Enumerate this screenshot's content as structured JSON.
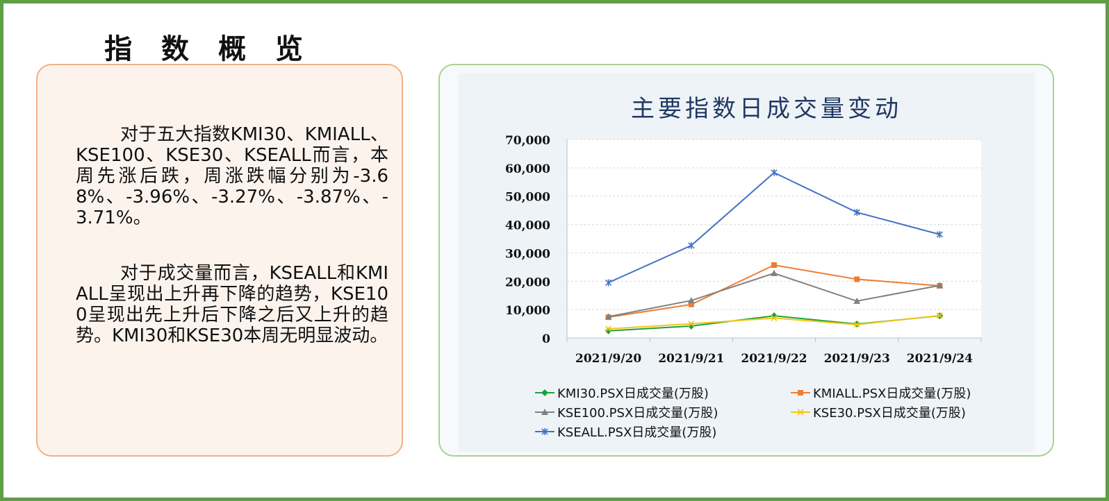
{
  "page": {
    "heading": "指 数 概 览",
    "paragraphs": [
      "对于五大指数KMI30、KMIALL、KSE100、KSE30、KSEALL而言，本周先涨后跌，周涨跌幅分别为-3.68%、-3.96%、-3.27%、-3.87%、-3.71%。",
      "对于成交量而言，KSEALL和KMIALL呈现出上升再下降的趋势，KSE100呈现出先上升后下降之后又上升的趋势。KMI30和KSE30本周无明显波动。"
    ]
  },
  "colors": {
    "frame": "#5f9e45",
    "text_panel_border": "#f2b183",
    "text_panel_bg": "#fdf3ed",
    "chart_panel_border": "#a9d18e",
    "chart_title": "#1f3864"
  },
  "chart_data": {
    "type": "line",
    "title": "主要指数日成交量变动",
    "categories": [
      "2021/9/20",
      "2021/9/21",
      "2021/9/22",
      "2021/9/23",
      "2021/9/24"
    ],
    "ylim": [
      0,
      70000
    ],
    "yticks": [
      0,
      10000,
      20000,
      30000,
      40000,
      50000,
      60000,
      70000
    ],
    "ytick_labels": [
      "0",
      "10,000",
      "20,000",
      "30,000",
      "40,000",
      "50,000",
      "60,000",
      "70,000"
    ],
    "grid": true,
    "legend_position": "bottom",
    "series": [
      {
        "name": "KMI30.PSX日成交量(万股)",
        "color": "#1aa33a",
        "marker": "diamond",
        "values": [
          2500,
          4200,
          7800,
          4900,
          7800
        ]
      },
      {
        "name": "KMIALL.PSX日成交量(万股)",
        "color": "#ed7d31",
        "marker": "square",
        "values": [
          7300,
          11800,
          25700,
          20700,
          18400
        ]
      },
      {
        "name": "KSE100.PSX日成交量(万股)",
        "color": "#808080",
        "marker": "triangle",
        "values": [
          7500,
          13200,
          22800,
          13000,
          18500
        ]
      },
      {
        "name": "KSE30.PSX日成交量(万股)",
        "color": "#f5c518",
        "marker": "x",
        "values": [
          3200,
          5000,
          7000,
          4700,
          7900
        ]
      },
      {
        "name": "KSEALL.PSX日成交量(万股)",
        "color": "#4472c4",
        "marker": "star",
        "values": [
          19500,
          32600,
          58300,
          44300,
          36500
        ]
      }
    ]
  }
}
